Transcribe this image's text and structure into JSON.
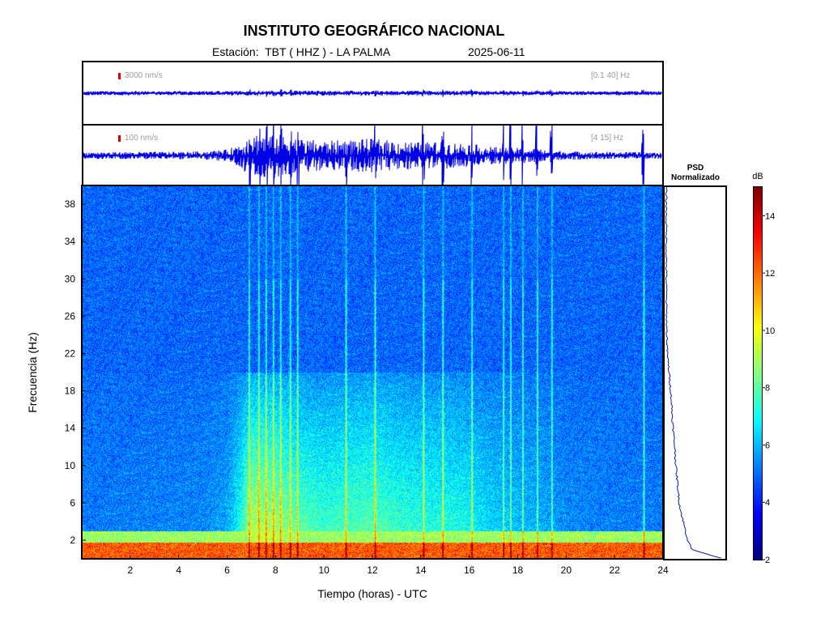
{
  "header": {
    "title": "INSTITUTO GEOGRÁFICO NACIONAL",
    "station": "Estación:  TBT ( HHZ ) - LA PALMA",
    "date": "2025-06-11"
  },
  "traces": [
    {
      "scale": "3000 nm/s",
      "band": "[0.1 40] Hz"
    },
    {
      "scale": "100 nm/s",
      "band": "[4 15] Hz"
    }
  ],
  "psd": {
    "title_line1": "PSD",
    "title_line2": "Normalizado"
  },
  "colorbar": {
    "unit": "dB",
    "ticks": [
      2,
      4,
      6,
      8,
      10,
      12,
      14
    ],
    "range": [
      2,
      15
    ]
  },
  "colors": {
    "trace": "#0000e6",
    "background_low": "#1e46d2",
    "scale_bar": "#e00000"
  },
  "chart_data": {
    "type": "heatmap",
    "title": "INSTITUTO GEOGRÁFICO NACIONAL",
    "xlabel": "Tiempo (horas) - UTC",
    "ylabel": "Frecuencia  (Hz)",
    "xlim": [
      0,
      24
    ],
    "ylim": [
      0,
      40
    ],
    "xticks": [
      2,
      4,
      6,
      8,
      10,
      12,
      14,
      16,
      18,
      20,
      22,
      24
    ],
    "yticks": [
      2,
      6,
      10,
      14,
      18,
      22,
      26,
      30,
      34,
      38
    ],
    "activity_envelope": {
      "hours": [
        0,
        2,
        4,
        5,
        6,
        6.5,
        7,
        8,
        9,
        10,
        11,
        12,
        13,
        14,
        15,
        16,
        16.5,
        17,
        18,
        19,
        20,
        22,
        24
      ],
      "amplitude": [
        0.06,
        0.07,
        0.08,
        0.1,
        0.18,
        0.45,
        0.9,
        0.85,
        0.65,
        0.55,
        0.6,
        0.65,
        0.55,
        0.5,
        0.5,
        0.45,
        0.35,
        0.3,
        0.25,
        0.2,
        0.1,
        0.07,
        0.06
      ]
    },
    "transient_hours": [
      6.9,
      7.3,
      7.6,
      7.9,
      8.2,
      8.6,
      8.9,
      10.9,
      12.1,
      14.1,
      14.9,
      16.1,
      17.4,
      17.7,
      18.2,
      18.8,
      19.4,
      23.2
    ],
    "psd_normalized": {
      "freq_hz": [
        0,
        1,
        2,
        3,
        4,
        5,
        6,
        8,
        10,
        12,
        14,
        16,
        18,
        20,
        22,
        24,
        26,
        28,
        30,
        34,
        38,
        40
      ],
      "value": [
        1.0,
        0.45,
        0.38,
        0.34,
        0.3,
        0.26,
        0.23,
        0.2,
        0.17,
        0.15,
        0.12,
        0.1,
        0.08,
        0.05,
        0.02,
        0.01,
        0.005,
        0.003,
        0.002,
        0.001,
        0.001,
        0.0
      ]
    }
  }
}
